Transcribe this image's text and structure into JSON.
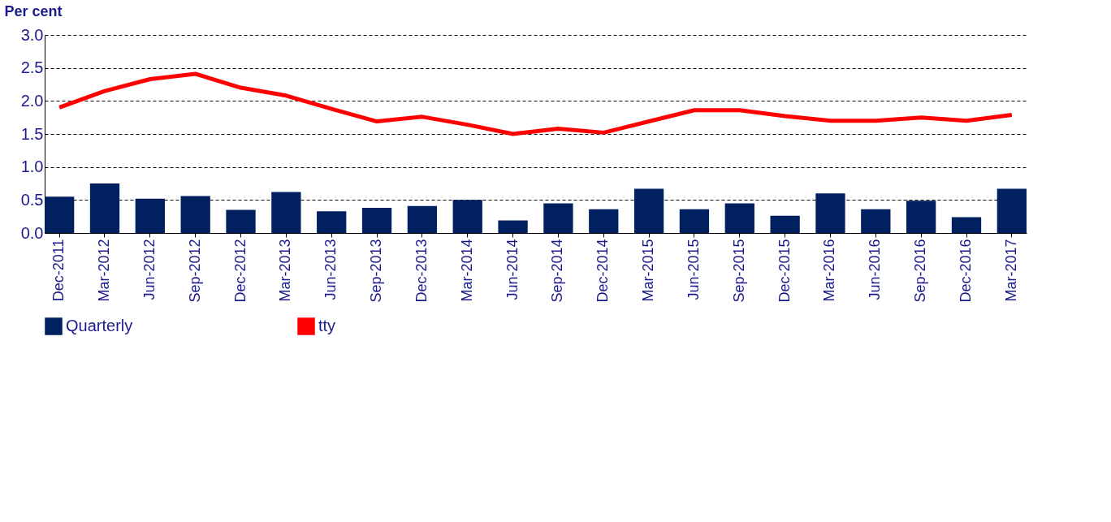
{
  "chart_data": {
    "type": "bar",
    "ylabel": "Per cent",
    "categories": [
      "Dec-2011",
      "Mar-2012",
      "Jun-2012",
      "Sep-2012",
      "Dec-2012",
      "Mar-2013",
      "Jun-2013",
      "Sep-2013",
      "Dec-2013",
      "Mar-2014",
      "Jun-2014",
      "Sep-2014",
      "Dec-2014",
      "Mar-2015",
      "Jun-2015",
      "Sep-2015",
      "Dec-2015",
      "Mar-2016",
      "Jun-2016",
      "Sep-2016",
      "Dec-2016",
      "Mar-2017"
    ],
    "series": [
      {
        "name": "Quarterly",
        "color": "#002060",
        "values": [
          0.55,
          0.75,
          0.52,
          0.56,
          0.35,
          0.62,
          0.33,
          0.38,
          0.41,
          0.5,
          0.19,
          0.45,
          0.36,
          0.67,
          0.36,
          0.45,
          0.26,
          0.6,
          0.36,
          0.49,
          0.24,
          0.67
        ]
      },
      {
        "name": "tty",
        "type": "line",
        "color": "#ff0000",
        "values": [
          1.9,
          2.15,
          2.33,
          2.41,
          2.2,
          2.08,
          1.88,
          1.69,
          1.76,
          1.64,
          1.5,
          1.58,
          1.52,
          1.69,
          1.86,
          1.86,
          1.77,
          1.7,
          1.7,
          1.75,
          1.7,
          1.79
        ]
      }
    ],
    "ylim": [
      0,
      3
    ],
    "yticks": [
      {
        "value": 0,
        "label": "0.0"
      },
      {
        "value": 0.5,
        "label": "0.5"
      },
      {
        "value": 1,
        "label": "1.0"
      },
      {
        "value": 1.5,
        "label": "1.5"
      },
      {
        "value": 2,
        "label": "2.0"
      },
      {
        "value": 2.5,
        "label": "2.5"
      },
      {
        "value": 3,
        "label": "3.0"
      }
    ],
    "grid": "y",
    "legend": "bottom",
    "marker": "none",
    "line_style": "solid"
  }
}
